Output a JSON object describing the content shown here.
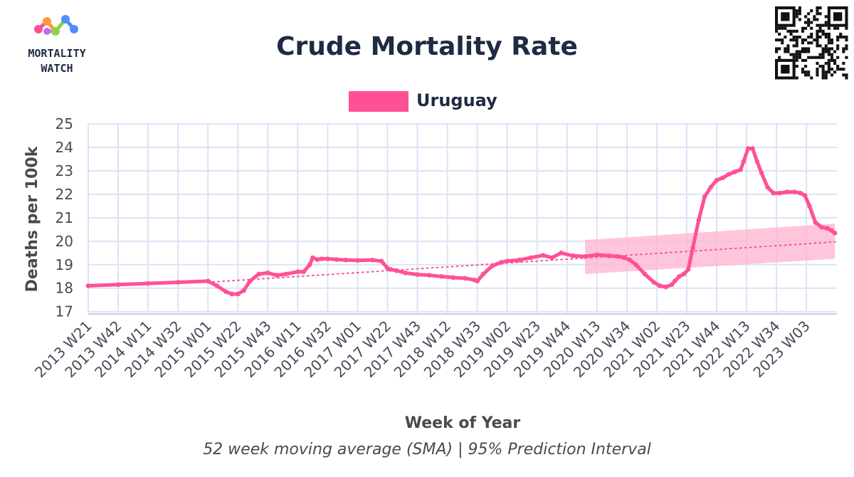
{
  "logo": {
    "line1": "MORTALITY",
    "line2": "WATCH"
  },
  "chart_data": {
    "type": "line",
    "title": "Crude Mortality Rate",
    "xlabel": "Week of Year",
    "ylabel": "Deaths per 100k",
    "caption": "52 week moving average (SMA) | 95% Prediction Interval",
    "ylim": [
      16.9,
      25
    ],
    "yticks": [
      17,
      18,
      19,
      20,
      21,
      22,
      23,
      24,
      25
    ],
    "xticks": [
      "2013 W21",
      "2013 W42",
      "2014 W11",
      "2014 W32",
      "2015 W01",
      "2015 W22",
      "2015 W43",
      "2016 W11",
      "2016 W32",
      "2017 W01",
      "2017 W22",
      "2017 W43",
      "2018 W12",
      "2018 W33",
      "2019 W02",
      "2019 W23",
      "2019 W44",
      "2020 W13",
      "2020 W34",
      "2021 W02",
      "2021 W23",
      "2021 W44",
      "2022 W13",
      "2022 W34",
      "2023 W03"
    ],
    "grid": true,
    "legend_position": "top-center",
    "colors": {
      "series": "#ff5096",
      "band": "#ffb3cf",
      "grid": "#dde3f7",
      "axis": "#c7cde6"
    },
    "series": [
      {
        "name": "Uruguay",
        "x": [
          0,
          1,
          2,
          3,
          4,
          4.3,
          4.6,
          4.8,
          5.0,
          5.2,
          5.4,
          5.7,
          6.0,
          6.3,
          6.6,
          7.0,
          7.2,
          7.4,
          7.5,
          7.65,
          7.8,
          8.0,
          8.3,
          8.6,
          9.0,
          9.5,
          9.8,
          10.0,
          10.1,
          10.3,
          10.6,
          11.0,
          11.4,
          11.8,
          12.2,
          12.6,
          12.9,
          13.0,
          13.2,
          13.5,
          13.8,
          14.0,
          14.4,
          14.8,
          15.2,
          15.5,
          15.8,
          16.2,
          16.6,
          17.0,
          17.4,
          17.7,
          17.9,
          18.1,
          18.3,
          18.6,
          18.9,
          19.1,
          19.3,
          19.5,
          19.6,
          19.75,
          19.9,
          20.05,
          20.2,
          20.4,
          20.6,
          20.8,
          21.0,
          21.2,
          21.4,
          21.6,
          21.8,
          21.9,
          22.05,
          22.2,
          22.35,
          22.5,
          22.7,
          22.9,
          23.1,
          23.35,
          23.6,
          23.8,
          23.95,
          24.1,
          24.3,
          24.5,
          24.7,
          24.85,
          24.95
        ],
        "values": [
          18.1,
          18.15,
          18.2,
          18.25,
          18.3,
          18.1,
          17.85,
          17.75,
          17.75,
          17.9,
          18.3,
          18.6,
          18.65,
          18.55,
          18.6,
          18.7,
          18.7,
          19.0,
          19.3,
          19.22,
          19.25,
          19.25,
          19.22,
          19.2,
          19.18,
          19.2,
          19.15,
          18.85,
          18.8,
          18.75,
          18.65,
          18.58,
          18.55,
          18.5,
          18.45,
          18.42,
          18.35,
          18.3,
          18.6,
          18.95,
          19.1,
          19.15,
          19.2,
          19.3,
          19.4,
          19.3,
          19.5,
          19.38,
          19.35,
          19.42,
          19.38,
          19.35,
          19.3,
          19.2,
          19.0,
          18.6,
          18.25,
          18.1,
          18.05,
          18.15,
          18.3,
          18.5,
          18.6,
          18.8,
          19.7,
          20.9,
          21.9,
          22.3,
          22.6,
          22.7,
          22.85,
          22.95,
          23.05,
          23.4,
          23.95,
          23.95,
          23.4,
          22.9,
          22.3,
          22.05,
          22.05,
          22.1,
          22.1,
          22.05,
          21.95,
          21.5,
          20.8,
          20.6,
          20.55,
          20.45,
          20.35
        ]
      }
    ],
    "trend": {
      "x": [
        4,
        24.95
      ],
      "values": [
        18.25,
        19.97
      ]
    },
    "prediction_interval": {
      "x": [
        16.6,
        24.95
      ],
      "upper": [
        20.05,
        20.75
      ],
      "lower": [
        18.6,
        19.25
      ]
    }
  }
}
